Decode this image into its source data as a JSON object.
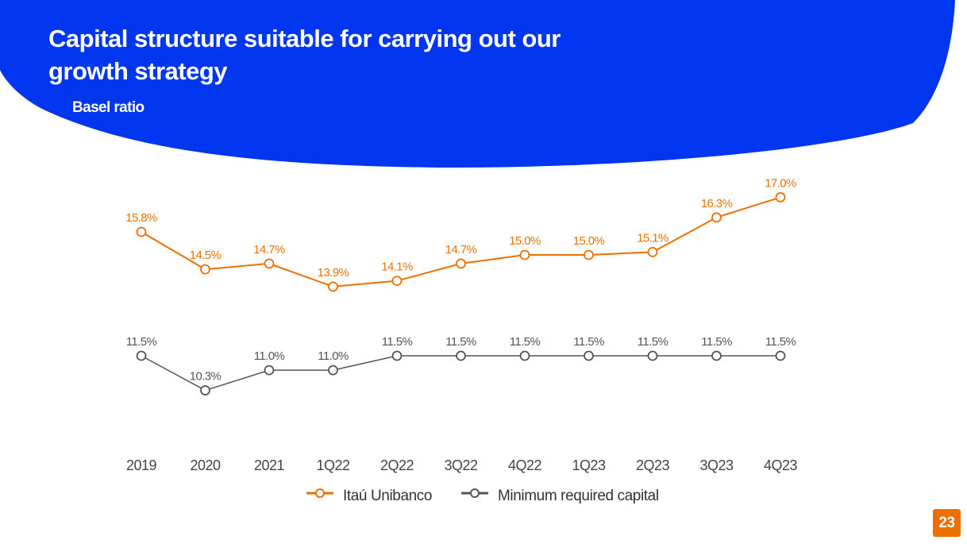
{
  "header": {
    "title": "Capital structure suitable for carrying out our growth strategy",
    "subtitle": "Basel ratio"
  },
  "page_number": "23",
  "colors": {
    "brand_blue": "#0036f0",
    "itau_orange": "#ec7000",
    "minimum_gray": "#555555"
  },
  "chart_data": {
    "type": "line",
    "title": "Basel ratio",
    "categories": [
      "2019",
      "2020",
      "2021",
      "1Q22",
      "2Q22",
      "3Q22",
      "4Q22",
      "1Q23",
      "2Q23",
      "3Q23",
      "4Q23"
    ],
    "series": [
      {
        "name": "Itaú Unibanco",
        "color": "#ec7000",
        "values": [
          15.8,
          14.5,
          14.7,
          13.9,
          14.1,
          14.7,
          15.0,
          15.0,
          15.1,
          16.3,
          17.0
        ],
        "labels": [
          "15.8%",
          "14.5%",
          "14.7%",
          "13.9%",
          "14.1%",
          "14.7%",
          "15.0%",
          "15.0%",
          "15.1%",
          "16.3%",
          "17.0%"
        ]
      },
      {
        "name": "Minimum required capital",
        "color": "#555555",
        "values": [
          11.5,
          10.3,
          11.0,
          11.0,
          11.5,
          11.5,
          11.5,
          11.5,
          11.5,
          11.5,
          11.5
        ],
        "labels": [
          "11.5%",
          "10.3%",
          "11.0%",
          "11.0%",
          "11.5%",
          "11.5%",
          "11.5%",
          "11.5%",
          "11.5%",
          "11.5%",
          "11.5%"
        ]
      }
    ],
    "legend": [
      "Itaú Unibanco",
      "Minimum required capital"
    ],
    "legend_position": "bottom",
    "grid": false,
    "xlabel": "",
    "ylabel": ""
  }
}
